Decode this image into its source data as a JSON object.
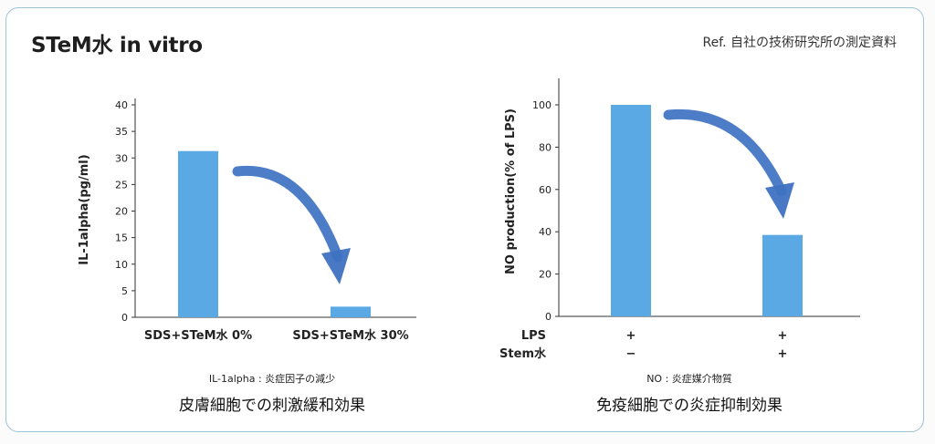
{
  "header": {
    "title": "STeM水 in vitro",
    "reference": "Ref. 自社の技術研究所の測定資料"
  },
  "colors": {
    "bar": "#5aa9e4",
    "arrow": "#3f72c2",
    "frame": "#9cc3d6"
  },
  "chart_data": [
    {
      "type": "bar",
      "categories": [
        "SDS+STeM水 0%",
        "SDS+STeM水 30%"
      ],
      "values": [
        31.3,
        2.0
      ],
      "title": "",
      "xlabel": "",
      "ylabel": "IL-1alpha(pg/ml)",
      "ylim": [
        0,
        40
      ],
      "yticks": [
        0,
        5,
        10,
        15,
        20,
        25,
        30,
        35,
        40
      ],
      "note": "IL-1alpha : 炎症因子の減少",
      "caption": "皮膚細胞での刺激緩和効果",
      "annotation": "downward arrow from first bar to second bar",
      "grid": false
    },
    {
      "type": "bar",
      "categories": [
        "LPS + / Stem水 −",
        "LPS + / Stem水 +"
      ],
      "values": [
        100,
        38.5
      ],
      "title": "",
      "xlabel": "",
      "ylabel": "NO production(% of LPS)",
      "ylim": [
        0,
        110
      ],
      "yticks": [
        0,
        20,
        40,
        60,
        80,
        100
      ],
      "row_labels": [
        "LPS",
        "Stem水"
      ],
      "row_values": [
        [
          "+",
          "+"
        ],
        [
          "−",
          "+"
        ]
      ],
      "note": "NO : 炎症媒介物質",
      "caption": "免疫細胞での炎症抑制効果",
      "annotation": "downward arrow from first bar to second bar",
      "grid": false
    }
  ]
}
